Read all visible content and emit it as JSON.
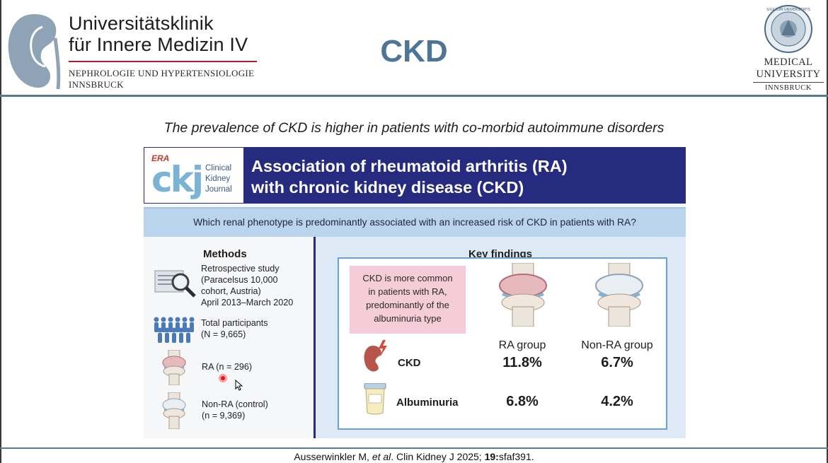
{
  "header": {
    "institution_line1": "Universitätsklinik",
    "institution_line2": "für Innere Medizin IV",
    "department_line1": "NEPHROLOGIE UND HYPERTENSIOLOGIE",
    "department_line2": "INNSBRUCK",
    "slide_title": "CKD",
    "university_line1": "MEDICAL",
    "university_line2": "UNIVERSITY",
    "university_city": "INNSBRUCK",
    "seal_text": "SIGILLUM UNIVERSITATIS",
    "kidney_logo_icon": "kidney-icon"
  },
  "subtitle": "The prevalence of CKD is higher in patients with co-morbid autoimmune disorders",
  "card": {
    "journal_badge": "ERA",
    "journal_logo_letters": "ckj",
    "journal_name_1": "Clinical",
    "journal_name_2": "Kidney",
    "journal_name_3": "Journal",
    "title_line1": "Association of rheumatoid arthritis (RA)",
    "title_line2": "with chronic kidney disease (CKD)",
    "question": "Which renal phenotype is predominantly associated with an increased risk of CKD in patients with RA?",
    "methods": {
      "title": "Methods",
      "study_1": "Retrospective study",
      "study_2": "(Paracelsus 10,000",
      "study_3": "cohort, Austria)",
      "study_4": "April 2013–March 2020",
      "participants_1": "Total participants",
      "participants_2": "(N = 9,665)",
      "ra": "RA (n = 296)",
      "nonra_1": "Non-RA (control)",
      "nonra_2": "(n = 9,369)"
    },
    "findings": {
      "title": "Key findings",
      "callout_1": "CKD is more common",
      "callout_2": "in patients with RA,",
      "callout_3": "predominantly of the",
      "callout_4": "albuminuria type",
      "col_ra": "RA group",
      "col_nonra": "Non-RA group",
      "rows": [
        {
          "label": "CKD",
          "ra": "11.8%",
          "nonra": "6.7%"
        },
        {
          "label": "Albuminuria",
          "ra": "6.8%",
          "nonra": "4.2%"
        }
      ]
    }
  },
  "citation": {
    "authors": "Ausserwinkler M, ",
    "etal": "et al",
    "journal": ". Clin Kidney J 2025; ",
    "volume": "19:",
    "article": "sfaf391."
  },
  "colors": {
    "accent_blue": "#4f7596",
    "banner_navy": "#262b80",
    "question_blue": "#b9d4ec",
    "findings_blue": "#dde9f4",
    "callout_pink": "#f4cdd8",
    "logo_red": "#b11e2a"
  }
}
